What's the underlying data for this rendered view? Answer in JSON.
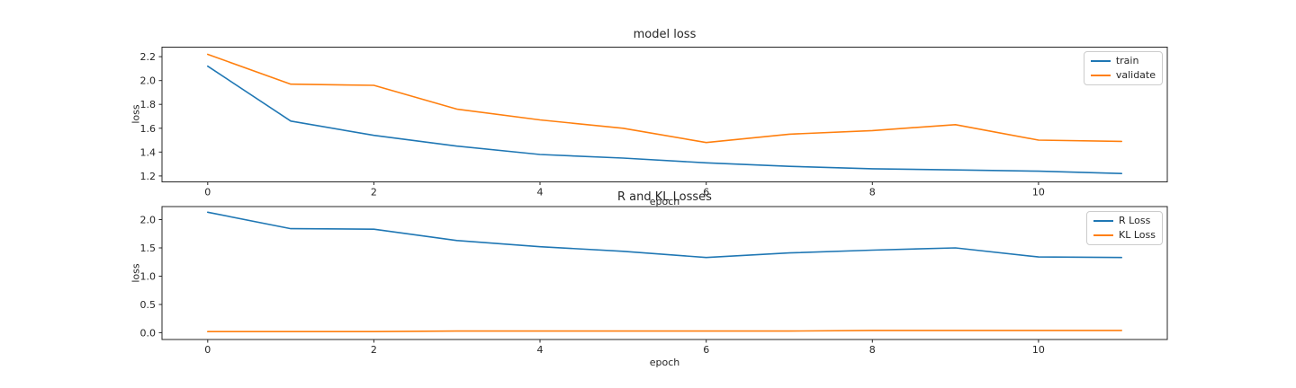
{
  "figure": {
    "background": "#ffffff"
  },
  "colors": {
    "blue": "#1f77b4",
    "orange": "#ff7f0e",
    "axis": "#262626"
  },
  "chart_data": [
    {
      "type": "line",
      "title": "model loss",
      "xlabel": "epoch",
      "ylabel": "loss",
      "x": [
        0,
        1,
        2,
        3,
        4,
        5,
        6,
        7,
        8,
        9,
        10,
        11
      ],
      "series": [
        {
          "name": "train",
          "color": "#1f77b4",
          "values": [
            2.12,
            1.66,
            1.54,
            1.45,
            1.38,
            1.35,
            1.31,
            1.28,
            1.26,
            1.25,
            1.24,
            1.22
          ]
        },
        {
          "name": "validate",
          "color": "#ff7f0e",
          "values": [
            2.22,
            1.97,
            1.96,
            1.76,
            1.67,
            1.6,
            1.48,
            1.55,
            1.58,
            1.63,
            1.5,
            1.49
          ]
        }
      ],
      "xlim": [
        -0.55,
        11.55
      ],
      "ylim": [
        1.15,
        2.28
      ],
      "xticks": [
        0,
        2,
        4,
        6,
        8,
        10
      ],
      "xtick_labels": [
        "0",
        "2",
        "4",
        "6",
        "8",
        "10"
      ],
      "yticks": [
        1.2,
        1.4,
        1.6,
        1.8,
        2.0,
        2.2
      ],
      "ytick_labels": [
        "1.2",
        "1.4",
        "1.6",
        "1.8",
        "2.0",
        "2.2"
      ],
      "legend": {
        "position": "upper right"
      },
      "grid": false
    },
    {
      "type": "line",
      "title": "R and KL Losses",
      "xlabel": "epoch",
      "ylabel": "loss",
      "x": [
        0,
        1,
        2,
        3,
        4,
        5,
        6,
        7,
        8,
        9,
        10,
        11
      ],
      "series": [
        {
          "name": "R Loss",
          "color": "#1f77b4",
          "values": [
            2.13,
            1.84,
            1.83,
            1.63,
            1.52,
            1.44,
            1.33,
            1.41,
            1.46,
            1.5,
            1.34,
            1.33
          ]
        },
        {
          "name": "KL Loss",
          "color": "#ff7f0e",
          "values": [
            0.02,
            0.02,
            0.02,
            0.03,
            0.03,
            0.03,
            0.03,
            0.03,
            0.04,
            0.04,
            0.04,
            0.04
          ]
        }
      ],
      "xlim": [
        -0.55,
        11.55
      ],
      "ylim": [
        -0.12,
        2.23
      ],
      "xticks": [
        0,
        2,
        4,
        6,
        8,
        10
      ],
      "xtick_labels": [
        "0",
        "2",
        "4",
        "6",
        "8",
        "10"
      ],
      "yticks": [
        0.0,
        0.5,
        1.0,
        1.5,
        2.0
      ],
      "ytick_labels": [
        "0.0",
        "0.5",
        "1.0",
        "1.5",
        "2.0"
      ],
      "legend": {
        "position": "upper right"
      },
      "grid": false
    }
  ]
}
